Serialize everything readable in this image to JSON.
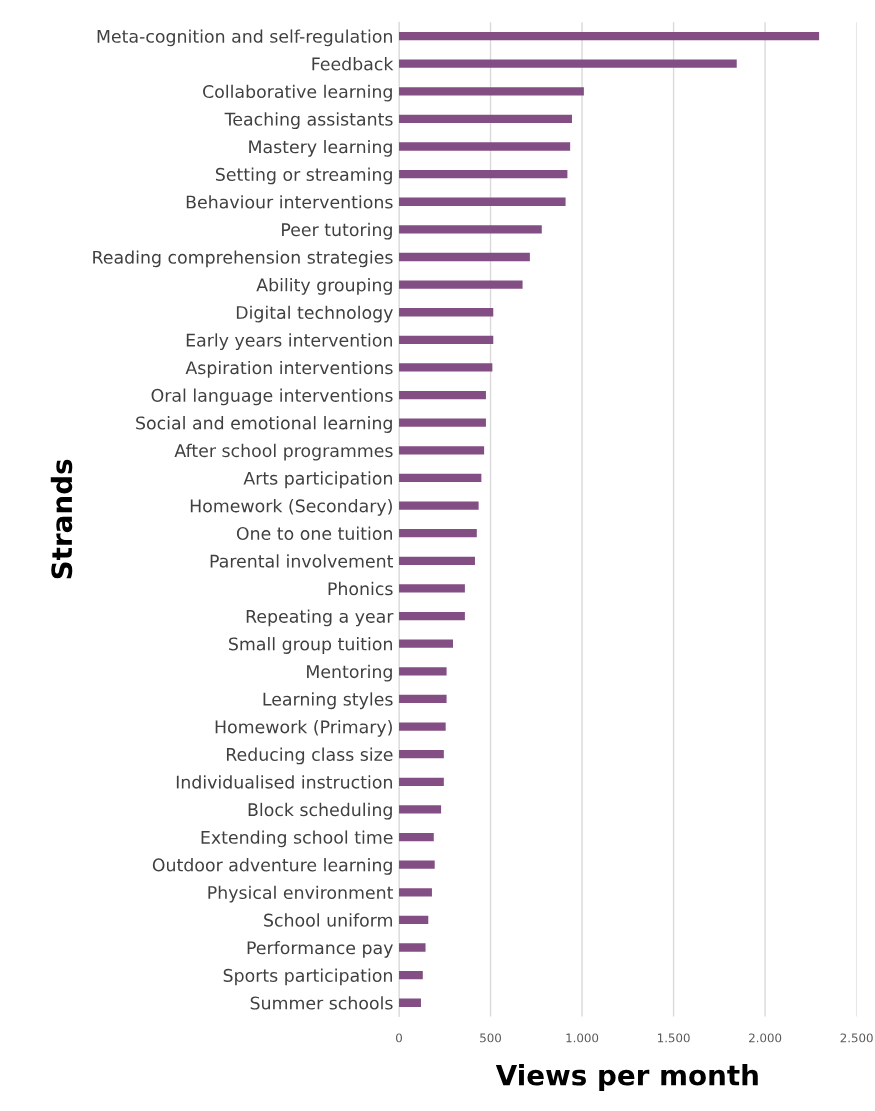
{
  "chart_data": {
    "type": "bar",
    "orientation": "horizontal",
    "xlabel": "Views per month",
    "ylabel": "Strands",
    "categories": [
      "Meta-cognition and self-regulation",
      "Feedback",
      "Collaborative learning",
      "Teaching assistants",
      "Mastery learning",
      "Setting or streaming",
      "Behaviour interventions",
      "Peer tutoring",
      "Reading comprehension strategies",
      "Ability grouping",
      "Digital technology",
      "Early years intervention",
      "Aspiration interventions",
      "Oral language interventions",
      "Social and emotional learning",
      "After school programmes",
      "Arts participation",
      "Homework (Secondary)",
      "One to one tuition",
      "Parental involvement",
      "Phonics",
      "Repeating a year",
      "Small group tuition",
      "Mentoring",
      "Learning styles",
      "Homework (Primary)",
      "Reducing class size",
      "Individualised instruction",
      "Block scheduling",
      "Extending school time",
      "Outdoor adventure learning",
      "Physical environment",
      "School uniform",
      "Performance pay",
      "Sports participation",
      "Summer schools"
    ],
    "values": [
      2295,
      1845,
      1010,
      945,
      935,
      920,
      910,
      780,
      715,
      675,
      515,
      515,
      510,
      475,
      475,
      465,
      450,
      435,
      425,
      415,
      360,
      360,
      295,
      260,
      260,
      255,
      245,
      245,
      230,
      190,
      195,
      180,
      160,
      145,
      130,
      120
    ],
    "color": "#834e84",
    "xlim": [
      0,
      2500
    ],
    "xticks": [
      0,
      500,
      {
        "value": 1000,
        "label": "1.000"
      },
      {
        "value": 1500,
        "label": "1.500"
      },
      {
        "value": 2000,
        "label": "2.000"
      },
      {
        "value": 2500,
        "label": "2.500"
      }
    ],
    "grid": "x"
  }
}
